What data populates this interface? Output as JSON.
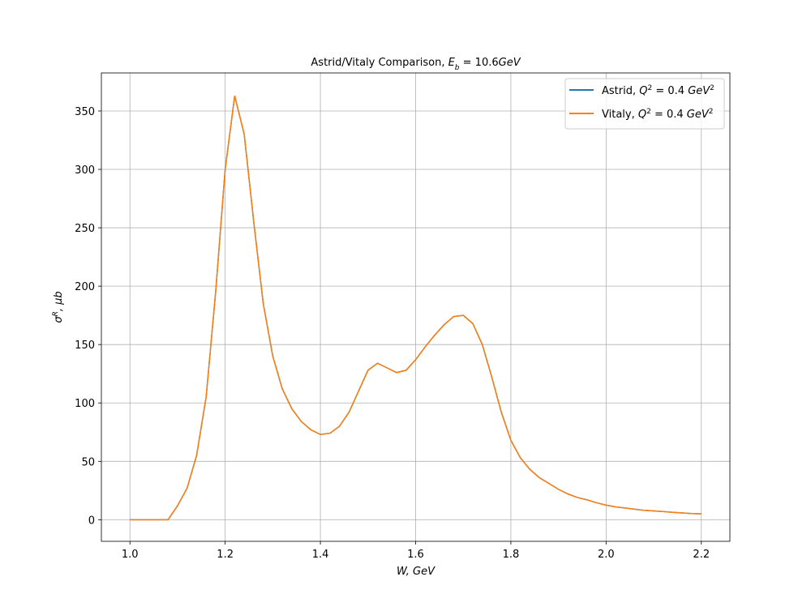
{
  "chart_data": {
    "type": "line",
    "title": [
      {
        "text": "Astrid/Vitaly Comparison, "
      },
      {
        "text": "E",
        "italic": true
      },
      {
        "text": "b",
        "sub": true,
        "italic": true
      },
      {
        "text": " = 10.6",
        "italic": false
      },
      {
        "text": "GeV",
        "italic": true
      }
    ],
    "xlabel": [
      {
        "text": "W, GeV",
        "italic": true
      }
    ],
    "ylabel": [
      {
        "text": "σ",
        "italic": true
      },
      {
        "text": "R",
        "sup": true,
        "italic": true
      },
      {
        "text": ", μb",
        "italic": true
      }
    ],
    "x": [
      1.0,
      1.02,
      1.04,
      1.06,
      1.08,
      1.1,
      1.12,
      1.14,
      1.16,
      1.18,
      1.2,
      1.22,
      1.24,
      1.26,
      1.28,
      1.3,
      1.32,
      1.34,
      1.36,
      1.38,
      1.4,
      1.42,
      1.44,
      1.46,
      1.48,
      1.5,
      1.52,
      1.54,
      1.56,
      1.58,
      1.6,
      1.62,
      1.64,
      1.66,
      1.68,
      1.7,
      1.72,
      1.74,
      1.76,
      1.78,
      1.8,
      1.82,
      1.84,
      1.86,
      1.88,
      1.9,
      1.92,
      1.94,
      1.96,
      1.98,
      2.0,
      2.02,
      2.04,
      2.06,
      2.08,
      2.1,
      2.12,
      2.14,
      2.16,
      2.18,
      2.2
    ],
    "series": [
      {
        "name": [
          {
            "text": "Astrid, "
          },
          {
            "text": "Q",
            "italic": true
          },
          {
            "text": "2",
            "sup": true
          },
          {
            "text": " = 0.4 "
          },
          {
            "text": "GeV",
            "italic": true
          },
          {
            "text": "2",
            "sup": true
          }
        ],
        "color": "#1f77b4",
        "values": [
          0,
          0,
          0,
          0,
          0,
          12,
          27,
          55,
          105,
          195,
          300,
          363,
          330,
          255,
          185,
          140,
          112,
          95,
          84,
          77,
          73,
          74,
          80,
          92,
          110,
          128,
          134,
          130,
          126,
          128,
          137,
          148,
          158,
          167,
          174,
          175,
          168,
          150,
          122,
          92,
          68,
          53,
          43,
          36,
          31,
          26,
          22,
          19,
          17,
          14.5,
          12.5,
          11,
          10,
          9,
          8,
          7.5,
          7,
          6.3,
          5.8,
          5.3,
          5
        ]
      },
      {
        "name": [
          {
            "text": "Vitaly, "
          },
          {
            "text": "Q",
            "italic": true
          },
          {
            "text": "2",
            "sup": true
          },
          {
            "text": " = 0.4 "
          },
          {
            "text": "GeV",
            "italic": true
          },
          {
            "text": "2",
            "sup": true
          }
        ],
        "color": "#ff7f0e",
        "values": [
          0,
          0,
          0,
          0,
          0,
          12,
          27,
          55,
          105,
          195,
          300,
          363,
          330,
          255,
          185,
          140,
          112,
          95,
          84,
          77,
          73,
          74,
          80,
          92,
          110,
          128,
          134,
          130,
          126,
          128,
          137,
          148,
          158,
          167,
          174,
          175,
          168,
          150,
          122,
          92,
          68,
          53,
          43,
          36,
          31,
          26,
          22,
          19,
          17,
          14.5,
          12.5,
          11,
          10,
          9,
          8,
          7.5,
          7,
          6.3,
          5.8,
          5.3,
          5
        ]
      }
    ],
    "xlim": [
      0.94,
      2.26
    ],
    "ylim": [
      -18.5,
      382.6
    ],
    "xticks": [
      {
        "value": 1,
        "label": "1.0"
      },
      1.2,
      1.4,
      1.6,
      1.8,
      {
        "value": 2,
        "label": "2.0"
      },
      2.2
    ],
    "yticks": [
      0,
      50,
      100,
      150,
      200,
      250,
      300,
      350
    ],
    "grid": true,
    "legend": "upper right"
  }
}
